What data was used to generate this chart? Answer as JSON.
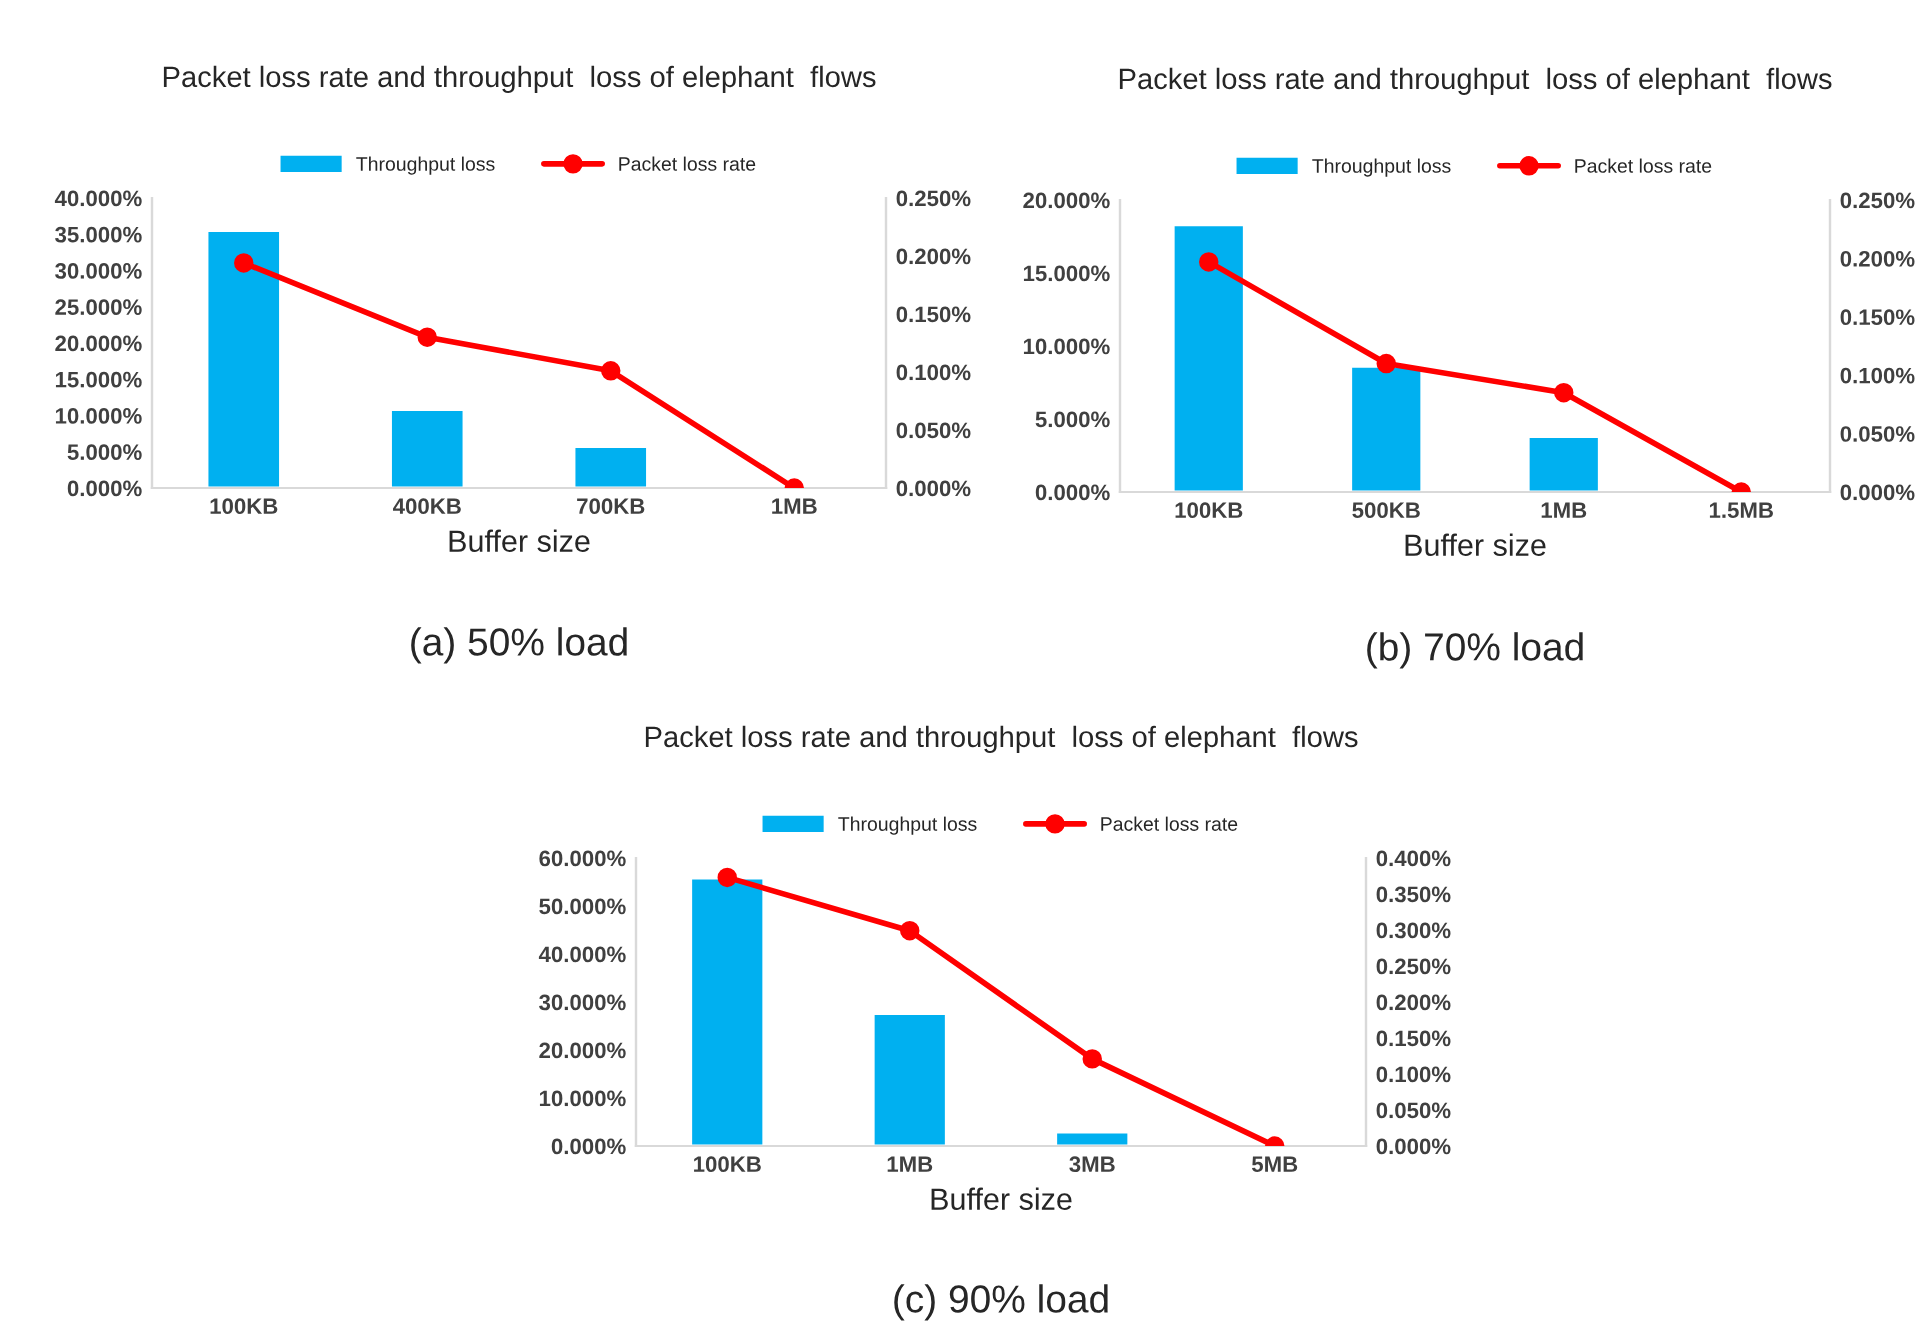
{
  "chart_data": [
    {
      "type": "bar",
      "title": "Packet loss rate and throughput  loss of elephant  flows",
      "xlabel": "Buffer size",
      "annotations": [
        "(a) 50% load"
      ],
      "categories": [
        "100KB",
        "400KB",
        "700KB",
        "1MB"
      ],
      "series": [
        {
          "name": "Throughput loss",
          "color": "#00b0f0",
          "values": [
            35.5,
            10.8,
            5.7,
            null
          ]
        },
        {
          "name": "Packet loss rate",
          "type": "line",
          "axis": "y2",
          "color": "#ff0000",
          "values": [
            0.194,
            0.13,
            0.101,
            0
          ]
        }
      ],
      "ylim": [
        0,
        40
      ],
      "yticks": [
        {
          "value": 0,
          "label": "0.000%"
        },
        {
          "value": 5,
          "label": "5.000%"
        },
        {
          "value": 10,
          "label": "10.000%"
        },
        {
          "value": 15,
          "label": "15.000%"
        },
        {
          "value": 20,
          "label": "20.000%"
        },
        {
          "value": 25,
          "label": "25.000%"
        },
        {
          "value": 30,
          "label": "30.000%"
        },
        {
          "value": 35,
          "label": "35.000%"
        },
        {
          "value": 40,
          "label": "40.000%"
        }
      ],
      "y2lim": [
        0,
        0.25
      ],
      "y2ticks": [
        {
          "value": 0,
          "label": "0.000%"
        },
        {
          "value": 0.05,
          "label": "0.050%"
        },
        {
          "value": 0.1,
          "label": "0.100%"
        },
        {
          "value": 0.15,
          "label": "0.150%"
        },
        {
          "value": 0.2,
          "label": "0.200%"
        },
        {
          "value": 0.25,
          "label": "0.250%"
        }
      ],
      "marker": "circle",
      "legend": "top",
      "grid": false
    },
    {
      "type": "bar",
      "title": "Packet loss rate and throughput  loss of elephant  flows",
      "xlabel": "Buffer size",
      "annotations": [
        "(b) 70% load"
      ],
      "categories": [
        "100KB",
        "500KB",
        "1MB",
        "1.5MB"
      ],
      "series": [
        {
          "name": "Throughput loss",
          "color": "#00b0f0",
          "values": [
            18.3,
            8.6,
            3.8,
            null
          ]
        },
        {
          "name": "Packet loss rate",
          "type": "line",
          "axis": "y2",
          "color": "#ff0000",
          "values": [
            0.197,
            0.11,
            0.085,
            0
          ]
        }
      ],
      "ylim": [
        0,
        20
      ],
      "yticks": [
        {
          "value": 0,
          "label": "0.000%"
        },
        {
          "value": 5,
          "label": "5.000%"
        },
        {
          "value": 10,
          "label": "10.000%"
        },
        {
          "value": 15,
          "label": "15.000%"
        },
        {
          "value": 20,
          "label": "20.000%"
        }
      ],
      "y2lim": [
        0,
        0.25
      ],
      "y2ticks": [
        {
          "value": 0,
          "label": "0.000%"
        },
        {
          "value": 0.05,
          "label": "0.050%"
        },
        {
          "value": 0.1,
          "label": "0.100%"
        },
        {
          "value": 0.15,
          "label": "0.150%"
        },
        {
          "value": 0.2,
          "label": "0.200%"
        },
        {
          "value": 0.25,
          "label": "0.250%"
        }
      ],
      "marker": "circle",
      "legend": "top",
      "grid": false
    },
    {
      "type": "bar",
      "title": "Packet loss rate and throughput  loss of elephant  flows",
      "xlabel": "Buffer size",
      "annotations": [
        "(c) 90% load"
      ],
      "categories": [
        "100KB",
        "1MB",
        "3MB",
        "5MB"
      ],
      "series": [
        {
          "name": "Throughput loss",
          "color": "#00b0f0",
          "values": [
            55.8,
            27.6,
            2.9,
            null
          ]
        },
        {
          "name": "Packet loss rate",
          "type": "line",
          "axis": "y2",
          "color": "#ff0000",
          "values": [
            0.373,
            0.299,
            0.121,
            0
          ]
        }
      ],
      "ylim": [
        0,
        60
      ],
      "yticks": [
        {
          "value": 0,
          "label": "0.000%"
        },
        {
          "value": 10,
          "label": "10.000%"
        },
        {
          "value": 20,
          "label": "20.000%"
        },
        {
          "value": 30,
          "label": "30.000%"
        },
        {
          "value": 40,
          "label": "40.000%"
        },
        {
          "value": 50,
          "label": "50.000%"
        },
        {
          "value": 60,
          "label": "60.000%"
        }
      ],
      "y2lim": [
        0,
        0.4
      ],
      "y2ticks": [
        {
          "value": 0,
          "label": "0.000%"
        },
        {
          "value": 0.05,
          "label": "0.050%"
        },
        {
          "value": 0.1,
          "label": "0.100%"
        },
        {
          "value": 0.15,
          "label": "0.150%"
        },
        {
          "value": 0.2,
          "label": "0.200%"
        },
        {
          "value": 0.25,
          "label": "0.250%"
        },
        {
          "value": 0.3,
          "label": "0.300%"
        },
        {
          "value": 0.35,
          "label": "0.350%"
        },
        {
          "value": 0.4,
          "label": "0.400%"
        }
      ],
      "marker": "circle",
      "legend": "top",
      "grid": false
    }
  ]
}
